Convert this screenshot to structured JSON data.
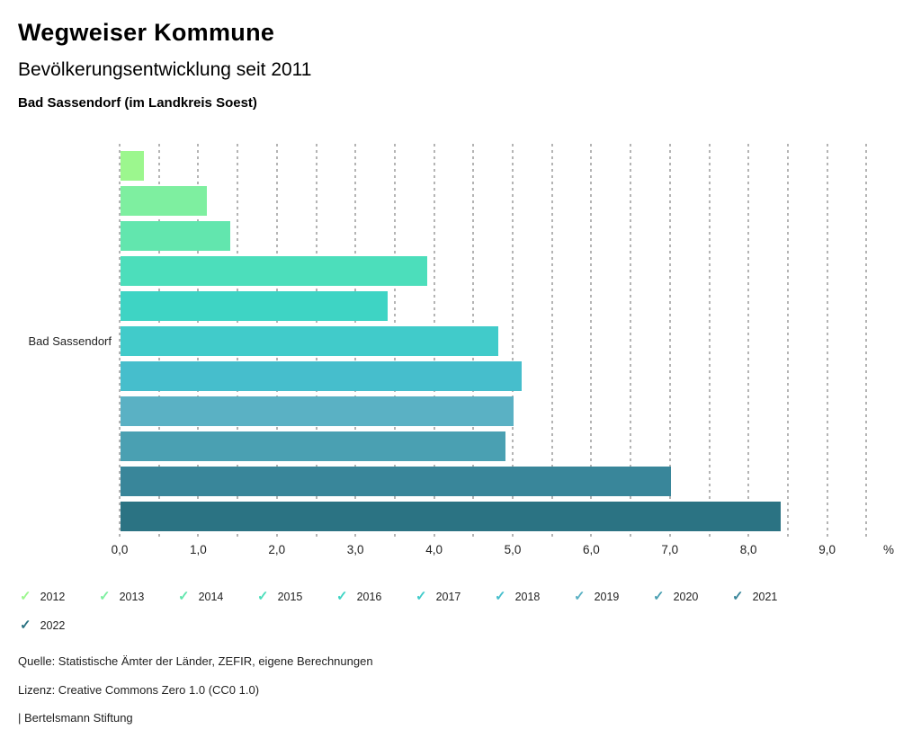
{
  "header": {
    "title": "Wegweiser Kommune",
    "subtitle": "Bevölkerungsentwicklung seit 2011",
    "location": "Bad Sassendorf (im Landkreis Soest)"
  },
  "chart_data": {
    "type": "bar",
    "orientation": "horizontal",
    "group_label": "Bad Sassendorf",
    "unit": "%",
    "xlim": [
      0,
      9.5
    ],
    "grid_step": 0.5,
    "x_ticks": [
      "0,0",
      "1,0",
      "2,0",
      "3,0",
      "4,0",
      "5,0",
      "6,0",
      "7,0",
      "8,0",
      "9,0"
    ],
    "series": [
      {
        "name": "2012",
        "value": 0.3,
        "color": "#9cf78e"
      },
      {
        "name": "2013",
        "value": 1.1,
        "color": "#7eefa0"
      },
      {
        "name": "2014",
        "value": 1.4,
        "color": "#62e6ae"
      },
      {
        "name": "2015",
        "value": 3.9,
        "color": "#4cdebb"
      },
      {
        "name": "2016",
        "value": 3.4,
        "color": "#3ed4c4"
      },
      {
        "name": "2017",
        "value": 4.8,
        "color": "#41cbca"
      },
      {
        "name": "2018",
        "value": 5.1,
        "color": "#46becc"
      },
      {
        "name": "2019",
        "value": 5.0,
        "color": "#5ab1c4"
      },
      {
        "name": "2020",
        "value": 4.9,
        "color": "#4aa0b2"
      },
      {
        "name": "2021",
        "value": 7.0,
        "color": "#39869a"
      },
      {
        "name": "2022",
        "value": 8.4,
        "color": "#2b7383"
      }
    ],
    "legend_position": "bottom",
    "grid": true
  },
  "footer": {
    "source": "Quelle: Statistische Ämter der Länder, ZEFIR, eigene Berechnungen",
    "license": "Lizenz: Creative Commons Zero 1.0 (CC0 1.0)",
    "brand": "| Bertelsmann Stiftung"
  }
}
